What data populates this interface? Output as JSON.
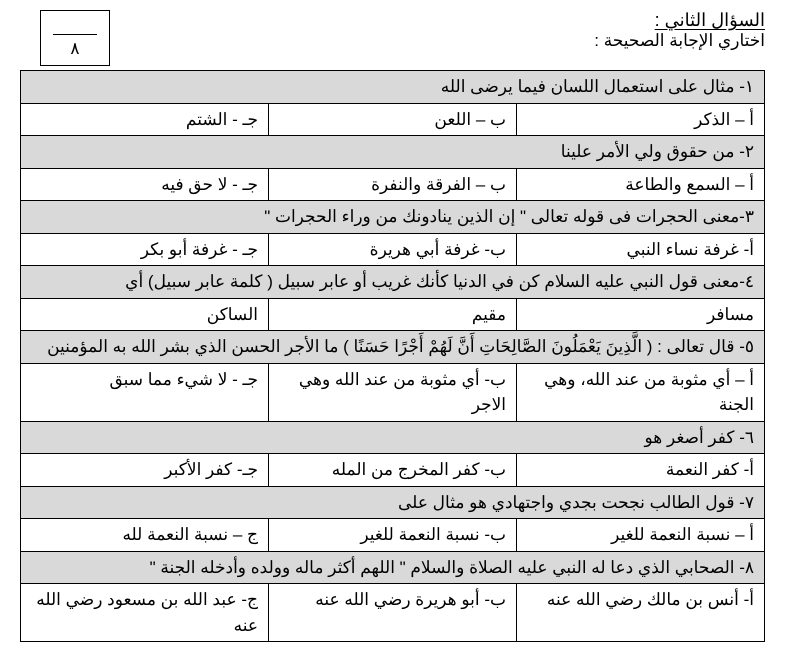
{
  "scoreBox": {
    "denominator": "٨"
  },
  "header": {
    "title": "السؤال الثاني :",
    "subtitle": "اختاري الإجابة الصحيحة :"
  },
  "rows": [
    {
      "type": "q",
      "text": "١- مثال على استعمال اللسان فيما يرضى الله"
    },
    {
      "type": "a",
      "cells": [
        "أ –  الذكر",
        "ب – اللعن",
        "جـ - الشتم"
      ]
    },
    {
      "type": "q",
      "text": "٢- من حقوق ولي الأمر علينا"
    },
    {
      "type": "a",
      "cells": [
        "أ – السمع والطاعة",
        "ب – الفرقة والنفرة",
        "جـ - لا حق فيه"
      ]
    },
    {
      "type": "q",
      "text": "٣-معنى الحجرات  فى قوله تعالى \" إن الذين ينادونك من وراء الحجرات  \""
    },
    {
      "type": "a",
      "cells": [
        "أ-     غرفة نساء النبي",
        "ب-  غرفة أبي هريرة",
        "جـ - غرفة أبو بكر"
      ]
    },
    {
      "type": "q",
      "text": "٤-معنى قول النبي عليه السلام كن في الدنيا كأنك غريب أو عابر سبيل   (  كلمة عابر سبيل) أي"
    },
    {
      "type": "a",
      "cells": [
        "مسافر",
        "مقيم",
        "الساكن"
      ]
    },
    {
      "type": "q",
      "text": "٥- قال تعالى :  ( الَّذِينَ يَعْمَلُونَ الصَّالِحَاتِ أَنَّ لَهُمْ أَجْرًا حَسَنًا )  ما الأجر الحسن الذي بشر الله به المؤمنين"
    },
    {
      "type": "a",
      "cells": [
        "أ – أي مثوبة من عند الله، وهي الجنة",
        "ب- أي مثوبة من عند الله وهي الاجر",
        "جـ - لا شيء مما سبق"
      ]
    },
    {
      "type": "q",
      "text": "٦- كفر أصغر هو"
    },
    {
      "type": "a",
      "cells": [
        "أ-     كفر النعمة",
        "ب- كفر المخرج من المله",
        "جـ- كفر الأكبر"
      ]
    },
    {
      "type": "q",
      "text": "٧- قول الطالب نجحت بجدي واجتهادي هو مثال على"
    },
    {
      "type": "a",
      "cells": [
        "أ – نسبة النعمة للغير",
        "ب- نسبة النعمة للغير",
        "ج – نسبة النعمة لله"
      ]
    },
    {
      "type": "q",
      "text": "٨- الصحابي الذي دعا له النبي عليه الصلاة والسلام \" اللهم أكثر ماله وولده وأدخله الجنة \""
    },
    {
      "type": "a",
      "cells": [
        "أ-     أنس بن مالك رضي الله عنه",
        "ب-  أبو هريرة رضي الله عنه",
        "ج- عبد الله بن مسعود رضي الله عنه"
      ]
    }
  ]
}
